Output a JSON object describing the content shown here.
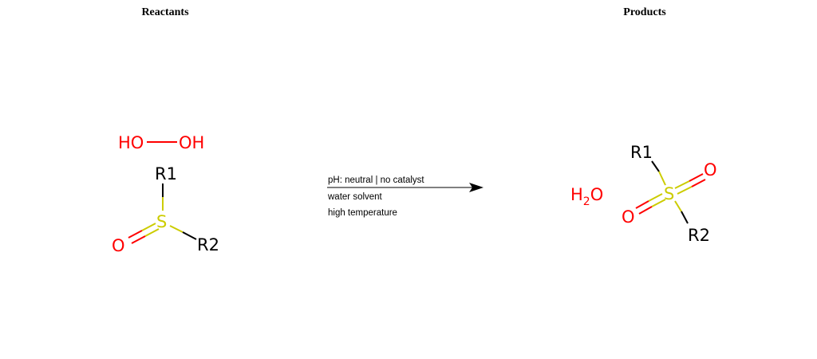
{
  "headings": {
    "reactants": "Reactants",
    "products": "Products"
  },
  "colors": {
    "oxygen": "#ff0000",
    "sulfur": "#cccc00",
    "carbon_bond": "#000000"
  },
  "reactants": {
    "peroxide": {
      "left": "HO",
      "right": "OH"
    },
    "sulfoxide": {
      "r1": "R1",
      "r2": "R2",
      "s": "S",
      "o": "O"
    }
  },
  "products": {
    "water": {
      "h": "H",
      "sub": "2",
      "o": "O"
    },
    "sulfone": {
      "r1": "R1",
      "r2": "R2",
      "s": "S",
      "o_top": "O",
      "o_bottom": "O"
    }
  },
  "conditions": {
    "line1": "pH: neutral | no catalyst",
    "line2": "water solvent",
    "line3": "high temperature"
  },
  "arrow_icon": "right-arrow-icon"
}
